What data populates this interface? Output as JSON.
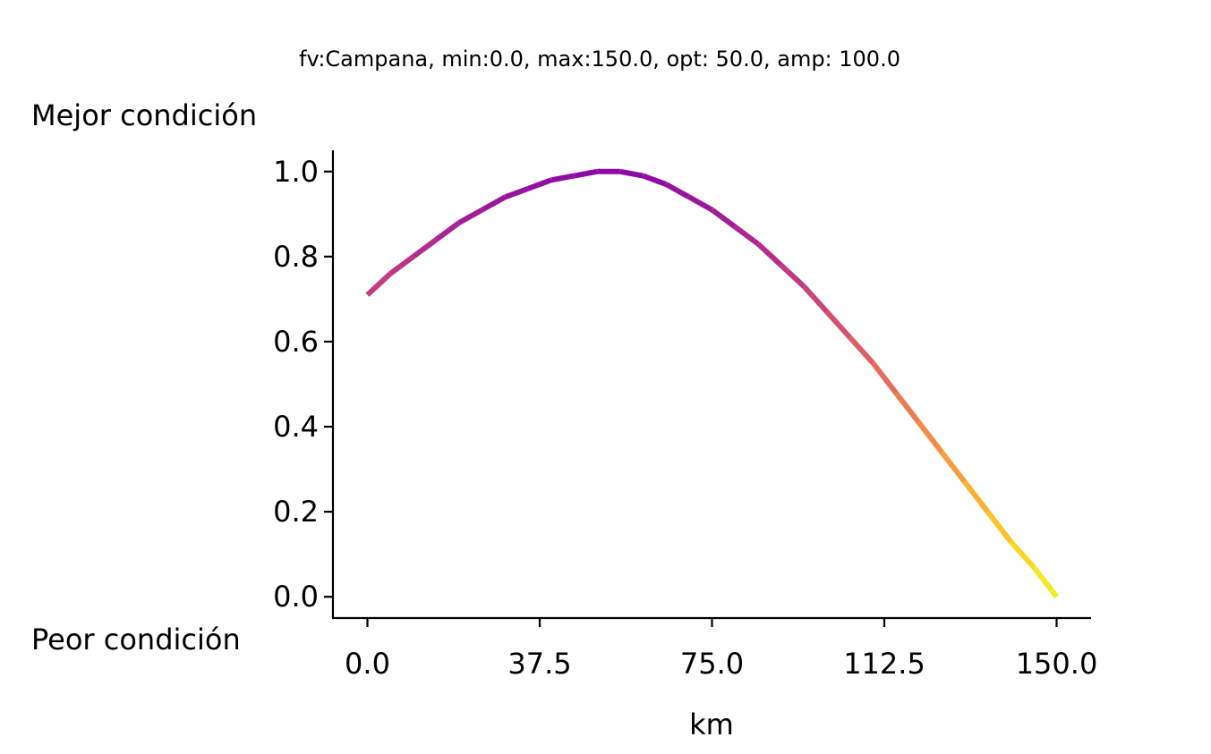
{
  "chart_data": {
    "type": "line",
    "title": "fv:Campana, min:0.0, max:150.0, opt: 50.0, amp: 100.0",
    "best_label": "Mejor condición",
    "worst_label": "Peor condición",
    "xlabel": "km",
    "ylabel": "",
    "xlim": [
      -7.5,
      157.5
    ],
    "ylim": [
      -0.05,
      1.05
    ],
    "xticks": [
      0,
      37.5,
      75,
      112.5,
      150
    ],
    "xtick_labels": [
      "0.0",
      "37.5",
      "75.0",
      "112.5",
      "150.0"
    ],
    "yticks": [
      0,
      0.2,
      0.4,
      0.6,
      0.8,
      1.0
    ],
    "ytick_labels": [
      "0.0",
      "0.2",
      "0.4",
      "0.6",
      "0.8",
      "1.0"
    ],
    "grid": false,
    "colormap": "plasma",
    "colormap_stops": [
      "#7e03a8",
      "#cc4778",
      "#f89540",
      "#f0f921"
    ],
    "series": [
      {
        "x": [
          0,
          5,
          10,
          15,
          20,
          25,
          30,
          35,
          40,
          45,
          50,
          55,
          60,
          65,
          70,
          75,
          80,
          85,
          90,
          95,
          100,
          105,
          110,
          115,
          120,
          125,
          130,
          135,
          140,
          145,
          150
        ],
        "values": [
          0.71,
          0.76,
          0.8,
          0.84,
          0.88,
          0.91,
          0.94,
          0.96,
          0.98,
          0.99,
          1.0,
          1.0,
          0.99,
          0.97,
          0.94,
          0.91,
          0.87,
          0.83,
          0.78,
          0.73,
          0.67,
          0.61,
          0.55,
          0.48,
          0.41,
          0.34,
          0.27,
          0.2,
          0.13,
          0.07,
          0.0
        ]
      }
    ]
  }
}
